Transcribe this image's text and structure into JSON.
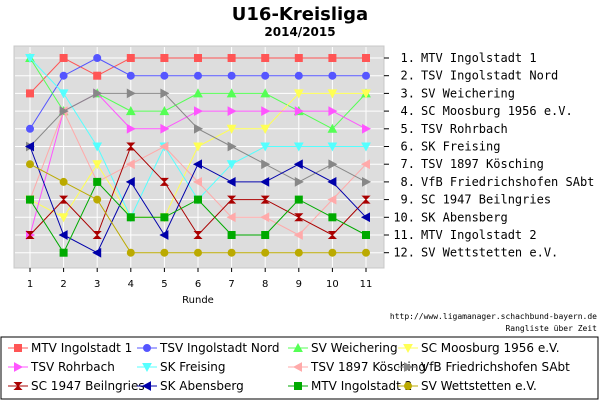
{
  "chart_data": {
    "type": "line",
    "title": "U16-Kreisliga",
    "subtitle": "2014/2015",
    "xlabel": "Runde",
    "ylabel": "",
    "x": [
      1,
      2,
      3,
      4,
      5,
      6,
      7,
      8,
      9,
      10,
      11
    ],
    "ylim": [
      12,
      1
    ],
    "y_inverted": true,
    "grid": true,
    "legend_position": "bottom",
    "rank_labels": [
      "1. MTV Ingolstadt 1",
      "2. TSV Ingolstadt Nord",
      "3. SV Weichering",
      "4. SC Moosburg 1956 e.V.",
      "5. TSV Rohrbach",
      "6. SK Freising",
      "7. TSV 1897 Kösching",
      "8. VfB Friedrichshofen SAbt",
      "9. SC 1947 Beilngries",
      "10. SK Abensberg",
      "11. MTV Ingolstadt 2",
      "12. SV Wettstetten e.V."
    ],
    "footnote_url": "http://www.ligamanager.schachbund-bayern.de",
    "footnote_caption": "Rangliste über Zeit",
    "series": [
      {
        "name": "MTV Ingolstadt 1",
        "color": "#ff5555",
        "marker": "square",
        "values": [
          3,
          1,
          2,
          1,
          1,
          1,
          1,
          1,
          1,
          1,
          1
        ]
      },
      {
        "name": "TSV Ingolstadt Nord",
        "color": "#5555ff",
        "marker": "circle",
        "values": [
          5,
          2,
          1,
          2,
          2,
          2,
          2,
          2,
          2,
          2,
          2
        ]
      },
      {
        "name": "SV Weichering",
        "color": "#55ff55",
        "marker": "triangle-up",
        "values": [
          1,
          4,
          3,
          4,
          4,
          3,
          3,
          3,
          4,
          5,
          3
        ]
      },
      {
        "name": "SC Moosburg 1956 e.V.",
        "color": "#ffff55",
        "marker": "triangle-down",
        "values": [
          9,
          10,
          7,
          10,
          10,
          6,
          5,
          5,
          3,
          3,
          3
        ]
      },
      {
        "name": "TSV Rohrbach",
        "color": "#ff55ff",
        "marker": "triangle-right",
        "values": [
          11,
          4,
          3,
          5,
          5,
          4,
          4,
          4,
          4,
          4,
          5
        ]
      },
      {
        "name": "SK Freising",
        "color": "#55ffff",
        "marker": "triangle-down",
        "values": [
          1,
          3,
          6,
          10,
          6,
          9,
          7,
          6,
          6,
          6,
          6
        ]
      },
      {
        "name": "TSV 1897 Kösching",
        "color": "#ffaaaa",
        "marker": "triangle-left",
        "values": [
          9,
          4,
          8,
          7,
          6,
          8,
          10,
          10,
          11,
          9,
          7
        ]
      },
      {
        "name": "VfB Friedrichshofen SAbt",
        "color": "#888888",
        "marker": "triangle-right",
        "values": [
          6,
          4,
          3,
          3,
          3,
          5,
          6,
          7,
          8,
          7,
          8
        ]
      },
      {
        "name": "SC 1947 Beilngries",
        "color": "#aa0000",
        "marker": "bowtie",
        "values": [
          11,
          9,
          11,
          6,
          8,
          11,
          9,
          9,
          10,
          11,
          9
        ]
      },
      {
        "name": "SK Abensberg",
        "color": "#0000aa",
        "marker": "triangle-left",
        "values": [
          6,
          11,
          12,
          8,
          11,
          7,
          8,
          8,
          7,
          8,
          10
        ]
      },
      {
        "name": "MTV Ingolstadt 2",
        "color": "#00aa00",
        "marker": "square",
        "values": [
          9,
          12,
          8,
          10,
          10,
          9,
          11,
          11,
          9,
          10,
          11
        ]
      },
      {
        "name": "SV Wettstetten e.V.",
        "color": "#bbaa00",
        "marker": "circle",
        "values": [
          7,
          8,
          9,
          12,
          12,
          12,
          12,
          12,
          12,
          12,
          12
        ]
      }
    ]
  }
}
